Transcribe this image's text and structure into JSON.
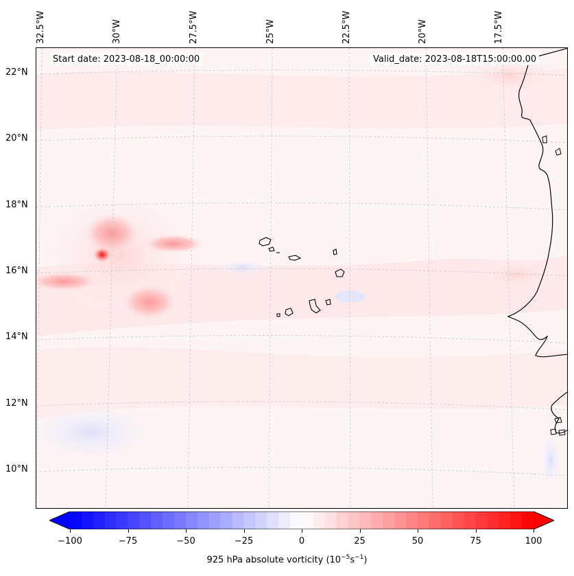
{
  "header": {
    "start_date": "Start date: 2023-08-18_00:00:00",
    "valid_date": "Valid_date: 2023-08-18T15:00:00.00"
  },
  "axes": {
    "lon_labels": [
      "32.5°W",
      "30°W",
      "27.5°W",
      "25°W",
      "22.5°W",
      "20°W",
      "17.5°W"
    ],
    "lat_labels": [
      "22°N",
      "20°N",
      "18°N",
      "16°N",
      "14°N",
      "12°N",
      "10°N"
    ]
  },
  "colorbar": {
    "ticks": [
      "−100",
      "−75",
      "−50",
      "−25",
      "0",
      "25",
      "50",
      "75",
      "100"
    ],
    "label_prefix": "925 hPa absolute vorticity (10",
    "label_exp1": "−5",
    "label_mid": "s",
    "label_exp2": "−1",
    "label_suffix": ")",
    "range": [
      -100,
      100
    ],
    "extend": "both",
    "cmap": "bwr",
    "low_color": "#0000ff",
    "mid_color": "#ffffff",
    "high_color": "#ff0000"
  },
  "map": {
    "land_color": "#fdf6f6",
    "coast_color": "#000000",
    "grid_color": "#c8c8c8",
    "max_feature_color": "#f21f1f"
  }
}
